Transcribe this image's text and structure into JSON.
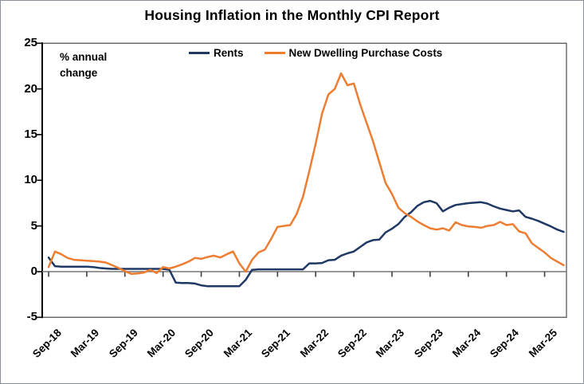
{
  "title": "Housing Inflation in the Monthly CPI Report",
  "plot_note": "% annual\nchange",
  "legend": [
    {
      "label": "Rents",
      "color": "#1f3864"
    },
    {
      "label": "New Dwelling Purchase Costs",
      "color": "#ed7d31"
    }
  ],
  "colors": {
    "rents_line": "#1f3864",
    "new_dwelling_line": "#ed7d31",
    "zero_axis_line": "#808080",
    "plot_frame": "#595959",
    "text": "#000000"
  },
  "chart_data": {
    "type": "line",
    "title": "Housing Inflation in the Monthly CPI Report",
    "xlabel": "",
    "ylabel": "% annual change",
    "ylim": [
      -5,
      25
    ],
    "y_ticks": [
      25,
      20,
      15,
      10,
      5,
      0,
      -5
    ],
    "grid": "zero-line-only",
    "legend_position": "top-inside",
    "x_frequency": "monthly",
    "x_start": "Sep-18",
    "x_end": "Jun-25",
    "x_tick_every_months": 6,
    "x_tick_labels": [
      "Sep-18",
      "Mar-19",
      "Sep-19",
      "Mar-20",
      "Sep-20",
      "Mar-21",
      "Sep-21",
      "Mar-22",
      "Sep-22",
      "Mar-23",
      "Sep-23",
      "Mar-24",
      "Sep-24",
      "Mar-25"
    ],
    "series": [
      {
        "name": "Rents",
        "color": "#1f3864",
        "values": [
          1.55,
          0.6,
          0.55,
          0.55,
          0.55,
          0.55,
          0.55,
          0.5,
          0.4,
          0.35,
          0.3,
          0.3,
          0.3,
          0.3,
          0.3,
          0.3,
          0.3,
          0.3,
          0.3,
          0.2,
          -1.2,
          -1.25,
          -1.25,
          -1.3,
          -1.5,
          -1.6,
          -1.6,
          -1.6,
          -1.6,
          -1.6,
          -1.6,
          -0.9,
          0.2,
          0.25,
          0.25,
          0.25,
          0.25,
          0.25,
          0.25,
          0.25,
          0.25,
          0.9,
          0.9,
          0.95,
          1.25,
          1.3,
          1.75,
          2.0,
          2.2,
          2.7,
          3.2,
          3.45,
          3.5,
          4.3,
          4.7,
          5.2,
          6.0,
          6.5,
          7.2,
          7.6,
          7.75,
          7.5,
          6.6,
          7.0,
          7.3,
          7.4,
          7.5,
          7.55,
          7.6,
          7.45,
          7.15,
          6.9,
          6.75,
          6.6,
          6.7,
          6.0,
          5.8,
          5.55,
          5.25,
          4.95,
          4.6,
          4.35
        ]
      },
      {
        "name": "New Dwelling Purchase Costs",
        "color": "#ed7d31",
        "values": [
          0.5,
          2.2,
          1.9,
          1.5,
          1.3,
          1.25,
          1.2,
          1.15,
          1.1,
          1.0,
          0.7,
          0.4,
          0.05,
          -0.25,
          -0.2,
          -0.1,
          0.2,
          -0.15,
          0.5,
          0.35,
          0.55,
          0.8,
          1.1,
          1.5,
          1.4,
          1.6,
          1.75,
          1.55,
          1.9,
          2.2,
          0.9,
          0.0,
          1.3,
          2.1,
          2.4,
          3.6,
          4.9,
          5.0,
          5.1,
          6.3,
          8.2,
          11.0,
          14.0,
          17.3,
          19.4,
          20.0,
          21.7,
          20.4,
          20.6,
          18.3,
          16.3,
          14.3,
          12.0,
          9.7,
          8.5,
          7.0,
          6.4,
          6.0,
          5.5,
          5.1,
          4.75,
          4.6,
          4.75,
          4.5,
          5.4,
          5.1,
          4.95,
          4.9,
          4.8,
          5.0,
          5.1,
          5.45,
          5.1,
          5.2,
          4.4,
          4.2,
          3.1,
          2.6,
          2.1,
          1.5,
          1.1,
          0.7
        ]
      }
    ]
  }
}
